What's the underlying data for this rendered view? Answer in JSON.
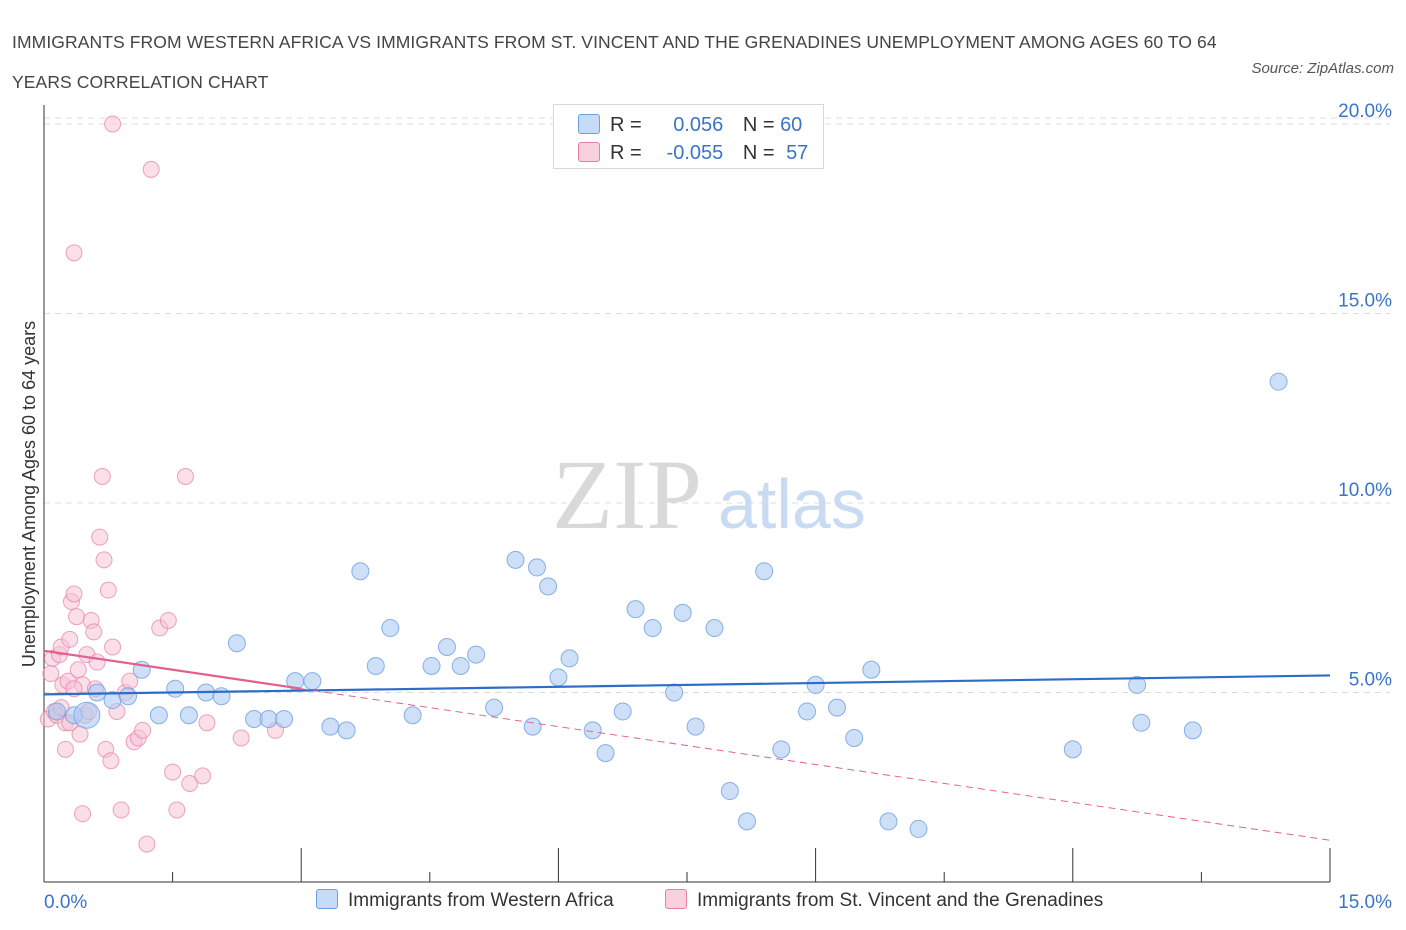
{
  "title": "IMMIGRANTS FROM WESTERN AFRICA VS IMMIGRANTS FROM ST. VINCENT AND THE GRENADINES UNEMPLOYMENT AMONG AGES 60 TO 64 YEARS CORRELATION CHART",
  "source": "Source: ZipAtlas.com",
  "watermark": {
    "zip": "ZIP",
    "atlas": "atlas"
  },
  "legend": {
    "rows": [
      {
        "r_label": "R =",
        "r_value": "0.056",
        "n_label": "N =",
        "n_value": "60",
        "color": "#aecbf3"
      },
      {
        "r_label": "R =",
        "r_value": "-0.055",
        "n_label": "N =",
        "n_value": "57",
        "color": "#f6b9cf"
      }
    ]
  },
  "bottom_legend": {
    "series1": "Immigrants from Western Africa",
    "series2": "Immigrants from St. Vincent and the Grenadines"
  },
  "colors": {
    "blue_fill": "#aecbf3",
    "blue_stroke": "#6d9fe0",
    "blue_line": "#2d6cc7",
    "pink_fill": "#f6c3d5",
    "pink_stroke": "#e77fa4",
    "pink_line": "#e0608e",
    "axis_text": "#3a74c8",
    "grid": "#dcdcdc"
  },
  "chart_data": {
    "type": "scatter",
    "title": "IMMIGRANTS FROM WESTERN AFRICA VS IMMIGRANTS FROM ST. VINCENT AND THE GRENADINES UNEMPLOYMENT AMONG AGES 60 TO 64 YEARS CORRELATION CHART",
    "xlabel": "",
    "ylabel": "Unemployment Among Ages 60 to 64 years",
    "xlim": [
      0,
      15
    ],
    "ylim": [
      0,
      20.5
    ],
    "x_tick_labels": [
      "0.0%",
      "15.0%"
    ],
    "y_ticks": [
      5,
      10,
      15,
      20
    ],
    "y_tick_labels": [
      "5.0%",
      "10.0%",
      "15.0%",
      "20.0%"
    ],
    "series": [
      {
        "name": "Immigrants from Western Africa",
        "R": 0.056,
        "N": 60,
        "trend": {
          "x": [
            0,
            15
          ],
          "y": [
            4.95,
            5.45
          ]
        },
        "points": [
          [
            0.15,
            4.5
          ],
          [
            0.35,
            4.4
          ],
          [
            0.62,
            5.0
          ],
          [
            0.8,
            4.8
          ],
          [
            0.98,
            4.9
          ],
          [
            1.14,
            5.6
          ],
          [
            1.34,
            4.4
          ],
          [
            1.53,
            5.1
          ],
          [
            1.69,
            4.4
          ],
          [
            1.89,
            5.0
          ],
          [
            2.07,
            4.9
          ],
          [
            2.25,
            6.3
          ],
          [
            2.45,
            4.3
          ],
          [
            2.62,
            4.3
          ],
          [
            2.8,
            4.3
          ],
          [
            2.93,
            5.3
          ],
          [
            3.13,
            5.3
          ],
          [
            3.34,
            4.1
          ],
          [
            3.53,
            4.0
          ],
          [
            3.69,
            8.2
          ],
          [
            3.87,
            5.7
          ],
          [
            4.04,
            6.7
          ],
          [
            4.3,
            4.4
          ],
          [
            4.52,
            5.7
          ],
          [
            4.7,
            6.2
          ],
          [
            4.86,
            5.7
          ],
          [
            5.04,
            6.0
          ],
          [
            5.25,
            4.6
          ],
          [
            5.5,
            8.5
          ],
          [
            5.7,
            4.1
          ],
          [
            5.75,
            8.3
          ],
          [
            5.88,
            7.8
          ],
          [
            6.0,
            5.4
          ],
          [
            6.13,
            5.9
          ],
          [
            6.4,
            4.0
          ],
          [
            6.55,
            3.4
          ],
          [
            6.75,
            4.5
          ],
          [
            6.9,
            7.2
          ],
          [
            7.1,
            6.7
          ],
          [
            7.35,
            5.0
          ],
          [
            7.45,
            7.1
          ],
          [
            7.6,
            4.1
          ],
          [
            7.82,
            6.7
          ],
          [
            8.0,
            2.4
          ],
          [
            8.2,
            1.6
          ],
          [
            8.4,
            8.2
          ],
          [
            8.6,
            3.5
          ],
          [
            8.9,
            4.5
          ],
          [
            9.0,
            5.2
          ],
          [
            9.25,
            4.6
          ],
          [
            9.45,
            3.8
          ],
          [
            9.65,
            5.6
          ],
          [
            9.85,
            1.6
          ],
          [
            10.2,
            1.4
          ],
          [
            12.0,
            3.5
          ],
          [
            12.75,
            5.2
          ],
          [
            12.8,
            4.2
          ],
          [
            13.4,
            4.0
          ],
          [
            14.4,
            13.2
          ],
          [
            0.5,
            4.4
          ]
        ]
      },
      {
        "name": "Immigrants from St. Vincent and the Grenadines",
        "R": -0.055,
        "N": 57,
        "trend_solid": {
          "x": [
            0,
            3.0
          ],
          "y": [
            6.1,
            5.1
          ]
        },
        "trend_dashed": {
          "x": [
            3.0,
            15
          ],
          "y": [
            5.1,
            1.1
          ]
        },
        "points": [
          [
            0.05,
            4.3
          ],
          [
            0.08,
            5.5
          ],
          [
            0.1,
            5.9
          ],
          [
            0.12,
            4.5
          ],
          [
            0.15,
            4.4
          ],
          [
            0.18,
            6.0
          ],
          [
            0.2,
            6.2
          ],
          [
            0.22,
            5.2
          ],
          [
            0.25,
            4.2
          ],
          [
            0.28,
            5.3
          ],
          [
            0.3,
            6.4
          ],
          [
            0.32,
            7.4
          ],
          [
            0.35,
            7.6
          ],
          [
            0.38,
            7.0
          ],
          [
            0.4,
            5.6
          ],
          [
            0.42,
            3.9
          ],
          [
            0.45,
            5.2
          ],
          [
            0.48,
            4.4
          ],
          [
            0.5,
            6.0
          ],
          [
            0.52,
            4.5
          ],
          [
            0.55,
            6.9
          ],
          [
            0.58,
            6.6
          ],
          [
            0.6,
            5.1
          ],
          [
            0.62,
            5.8
          ],
          [
            0.65,
            9.1
          ],
          [
            0.68,
            10.7
          ],
          [
            0.7,
            8.5
          ],
          [
            0.72,
            3.5
          ],
          [
            0.75,
            7.7
          ],
          [
            0.78,
            3.2
          ],
          [
            0.8,
            6.2
          ],
          [
            0.85,
            4.5
          ],
          [
            0.9,
            1.9
          ],
          [
            0.95,
            5.0
          ],
          [
            1.0,
            5.3
          ],
          [
            1.05,
            3.7
          ],
          [
            1.1,
            3.8
          ],
          [
            1.15,
            4.0
          ],
          [
            0.2,
            4.6
          ],
          [
            0.25,
            3.5
          ],
          [
            0.3,
            4.2
          ],
          [
            0.35,
            5.1
          ],
          [
            0.45,
            1.8
          ],
          [
            1.2,
            1.0
          ],
          [
            0.8,
            20.0
          ],
          [
            1.25,
            18.8
          ],
          [
            0.35,
            16.6
          ],
          [
            1.35,
            6.7
          ],
          [
            1.45,
            6.9
          ],
          [
            1.5,
            2.9
          ],
          [
            1.55,
            1.9
          ],
          [
            1.65,
            10.7
          ],
          [
            1.7,
            2.6
          ],
          [
            1.85,
            2.8
          ],
          [
            1.9,
            4.2
          ],
          [
            2.3,
            3.8
          ],
          [
            2.7,
            4.0
          ]
        ]
      }
    ]
  }
}
